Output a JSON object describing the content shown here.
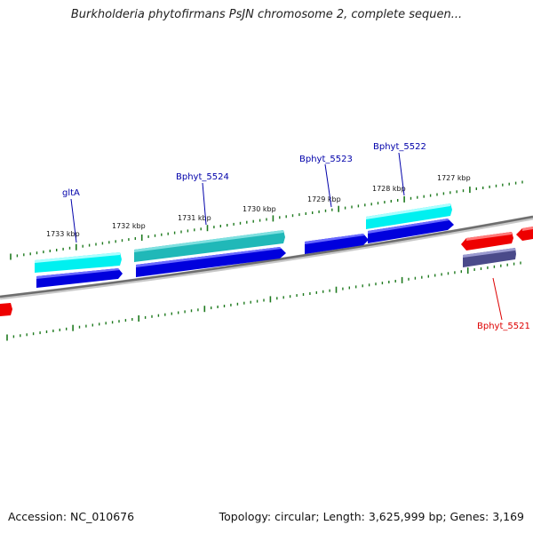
{
  "title": "Burkholderia phytofirmans PsJN chromosome 2, complete sequen...",
  "footer": {
    "accession": "Accession: NC_010676",
    "summary": "Topology: circular; Length: 3,625,999 bp; Genes: 3,169"
  },
  "colors": {
    "tick": "#1e7a1e",
    "backbone": "#808080",
    "cds_blue": "#0000dd",
    "cds_cyan": "#00f0f0",
    "cds_teal": "#20b8b8",
    "cds_red": "#ee0000",
    "cds_slate": "#4a4a8a",
    "label_blue": "#0000aa",
    "label_red": "#dd0000"
  },
  "tick_labels": [
    "1733 kbp",
    "1732 kbp",
    "1731 kbp",
    "1730 kbp",
    "1729 kbp",
    "1728 kbp",
    "1727 kbp"
  ],
  "gene_labels": [
    {
      "text": "gltA",
      "color": "label_blue"
    },
    {
      "text": "Bphyt_5524",
      "color": "label_blue"
    },
    {
      "text": "Bphyt_5523",
      "color": "label_blue"
    },
    {
      "text": "Bphyt_5522",
      "color": "label_blue"
    },
    {
      "text": "Bphyt_5521",
      "color": "label_red"
    }
  ]
}
